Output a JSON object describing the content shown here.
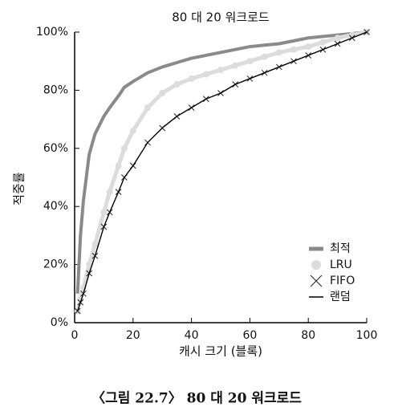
{
  "chart_data": {
    "type": "line",
    "title": "80 대 20 워크로드",
    "x_label": "캐시 크기 (블록)",
    "y_label": "적중률",
    "caption": "〈그림 22.7〉 80 대 20 워크로드",
    "x": [
      1,
      2,
      3,
      5,
      7,
      10,
      12,
      15,
      17,
      20,
      25,
      30,
      35,
      40,
      45,
      50,
      55,
      60,
      65,
      70,
      75,
      80,
      85,
      90,
      95,
      100
    ],
    "series": [
      {
        "name": "최적",
        "color": "#8a8a8a",
        "marker": "none",
        "values": [
          10,
          30,
          42,
          58,
          65,
          71,
          74,
          78,
          81,
          83,
          86,
          88,
          89.5,
          91,
          92,
          93,
          94,
          95,
          95.5,
          96,
          97,
          98,
          98.5,
          99,
          99.5,
          100
        ]
      },
      {
        "name": "LRU",
        "color": "#dcdcdc",
        "marker": "circle",
        "values": [
          4,
          8,
          12,
          20,
          27,
          38,
          45,
          54,
          60,
          66,
          74,
          79,
          82,
          84,
          85.5,
          87,
          88.5,
          90,
          91.5,
          93,
          94,
          95,
          96.5,
          98,
          99,
          100
        ]
      },
      {
        "name": "FIFO",
        "color": "#222222",
        "marker": "x",
        "values": [
          4,
          7,
          10,
          17,
          23,
          33,
          38,
          45,
          50,
          54,
          62,
          67,
          71,
          74,
          77,
          79,
          82,
          84,
          86,
          88,
          90,
          92,
          94,
          96,
          98,
          100
        ]
      },
      {
        "name": "랜덤",
        "color": "#000000",
        "marker": "none",
        "values": [
          4,
          7,
          10,
          17,
          23,
          33,
          38,
          45,
          50,
          54,
          62,
          67,
          71,
          74,
          77,
          79,
          82,
          84,
          86,
          88,
          90,
          92,
          94,
          96,
          98,
          100
        ]
      }
    ],
    "xlim": [
      0,
      100
    ],
    "xticks": [
      0,
      20,
      40,
      60,
      80,
      100
    ],
    "ylim": [
      0,
      100
    ],
    "yticks": [
      {
        "value": 0,
        "label": "0%"
      },
      {
        "value": 20,
        "label": "20%"
      },
      {
        "value": 40,
        "label": "40%"
      },
      {
        "value": 60,
        "label": "60%"
      },
      {
        "value": 80,
        "label": "80%"
      },
      {
        "value": 100,
        "label": "100%"
      }
    ],
    "legend": "lower right"
  }
}
